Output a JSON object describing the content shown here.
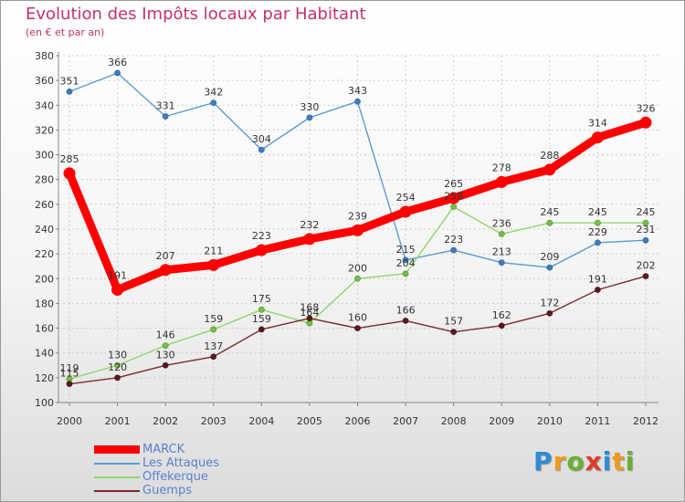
{
  "header": {
    "title": "Evolution des Impôts locaux par Habitant",
    "subtitle": "(en € et par an)"
  },
  "brand": {
    "logo_letters": [
      "P",
      "r",
      "o",
      "x",
      "i",
      "t",
      "i"
    ],
    "logo_colors": [
      "#2e8bd6",
      "#f29a1a",
      "#6ab12f",
      "#e23a2a",
      "#2e8bd6",
      "#f29a1a",
      "#6ab12f"
    ]
  },
  "chart_data": {
    "type": "line",
    "title": "Evolution des Impôts locaux par Habitant",
    "subtitle": "(en € et par an)",
    "xlabel": "",
    "ylabel": "",
    "categories": [
      "2000",
      "2001",
      "2002",
      "2003",
      "2004",
      "2005",
      "2006",
      "2007",
      "2008",
      "2009",
      "2010",
      "2011",
      "2012"
    ],
    "ylim": [
      100,
      380
    ],
    "yticks": [
      100,
      120,
      140,
      160,
      180,
      200,
      220,
      240,
      260,
      280,
      300,
      320,
      340,
      360,
      380
    ],
    "grid": true,
    "legend_position": "bottom-left",
    "series": [
      {
        "name": "Les Attaques",
        "color": "#5b9bd5",
        "point_color": "#3a7cc2",
        "values": [
          351,
          366,
          331,
          342,
          304,
          330,
          343,
          215,
          223,
          213,
          209,
          229,
          231
        ],
        "labels": [
          "351",
          "366",
          "331",
          "342",
          "304",
          "330",
          "343",
          "215",
          "223",
          "213",
          "209",
          "229",
          "231"
        ]
      },
      {
        "name": "Offekerque",
        "color": "#8fd66a",
        "point_color": "#6fc23f",
        "values": [
          119,
          130,
          146,
          159,
          175,
          164,
          200,
          204,
          258,
          236,
          245,
          245,
          245
        ],
        "labels": [
          "119",
          "130",
          "146",
          "159",
          "175",
          "164",
          "200",
          "204",
          "258",
          "236",
          "245",
          "245",
          "245"
        ]
      },
      {
        "name": "Guemps",
        "color": "#7a2a2a",
        "point_color": "#5e1616",
        "values": [
          115,
          120,
          130,
          137,
          159,
          168,
          160,
          166,
          157,
          162,
          172,
          191,
          202
        ],
        "labels": [
          "115",
          "120",
          "130",
          "137",
          "159",
          "168",
          "160",
          "166",
          "157",
          "162",
          "172",
          "191",
          "202"
        ]
      },
      {
        "name": "MARCK",
        "color": "#ff0000",
        "point_color": "#ff0000",
        "values": [
          285,
          191,
          207,
          211,
          223,
          232,
          239,
          254,
          265,
          278,
          288,
          314,
          326
        ],
        "labels": [
          "285",
          "191",
          "207",
          "211",
          "223",
          "232",
          "239",
          "254",
          "265",
          "278",
          "288",
          "314",
          "326"
        ]
      }
    ],
    "legend": [
      {
        "name": "MARCK",
        "color": "#ff0000",
        "text_color": "#5b7fd0"
      },
      {
        "name": "Les Attaques",
        "color": "#5b9bd5",
        "text_color": "#5b7fd0"
      },
      {
        "name": "Offekerque",
        "color": "#8fd66a",
        "text_color": "#5b7fd0"
      },
      {
        "name": "Guemps",
        "color": "#7a2a2a",
        "text_color": "#5b7fd0"
      }
    ]
  }
}
